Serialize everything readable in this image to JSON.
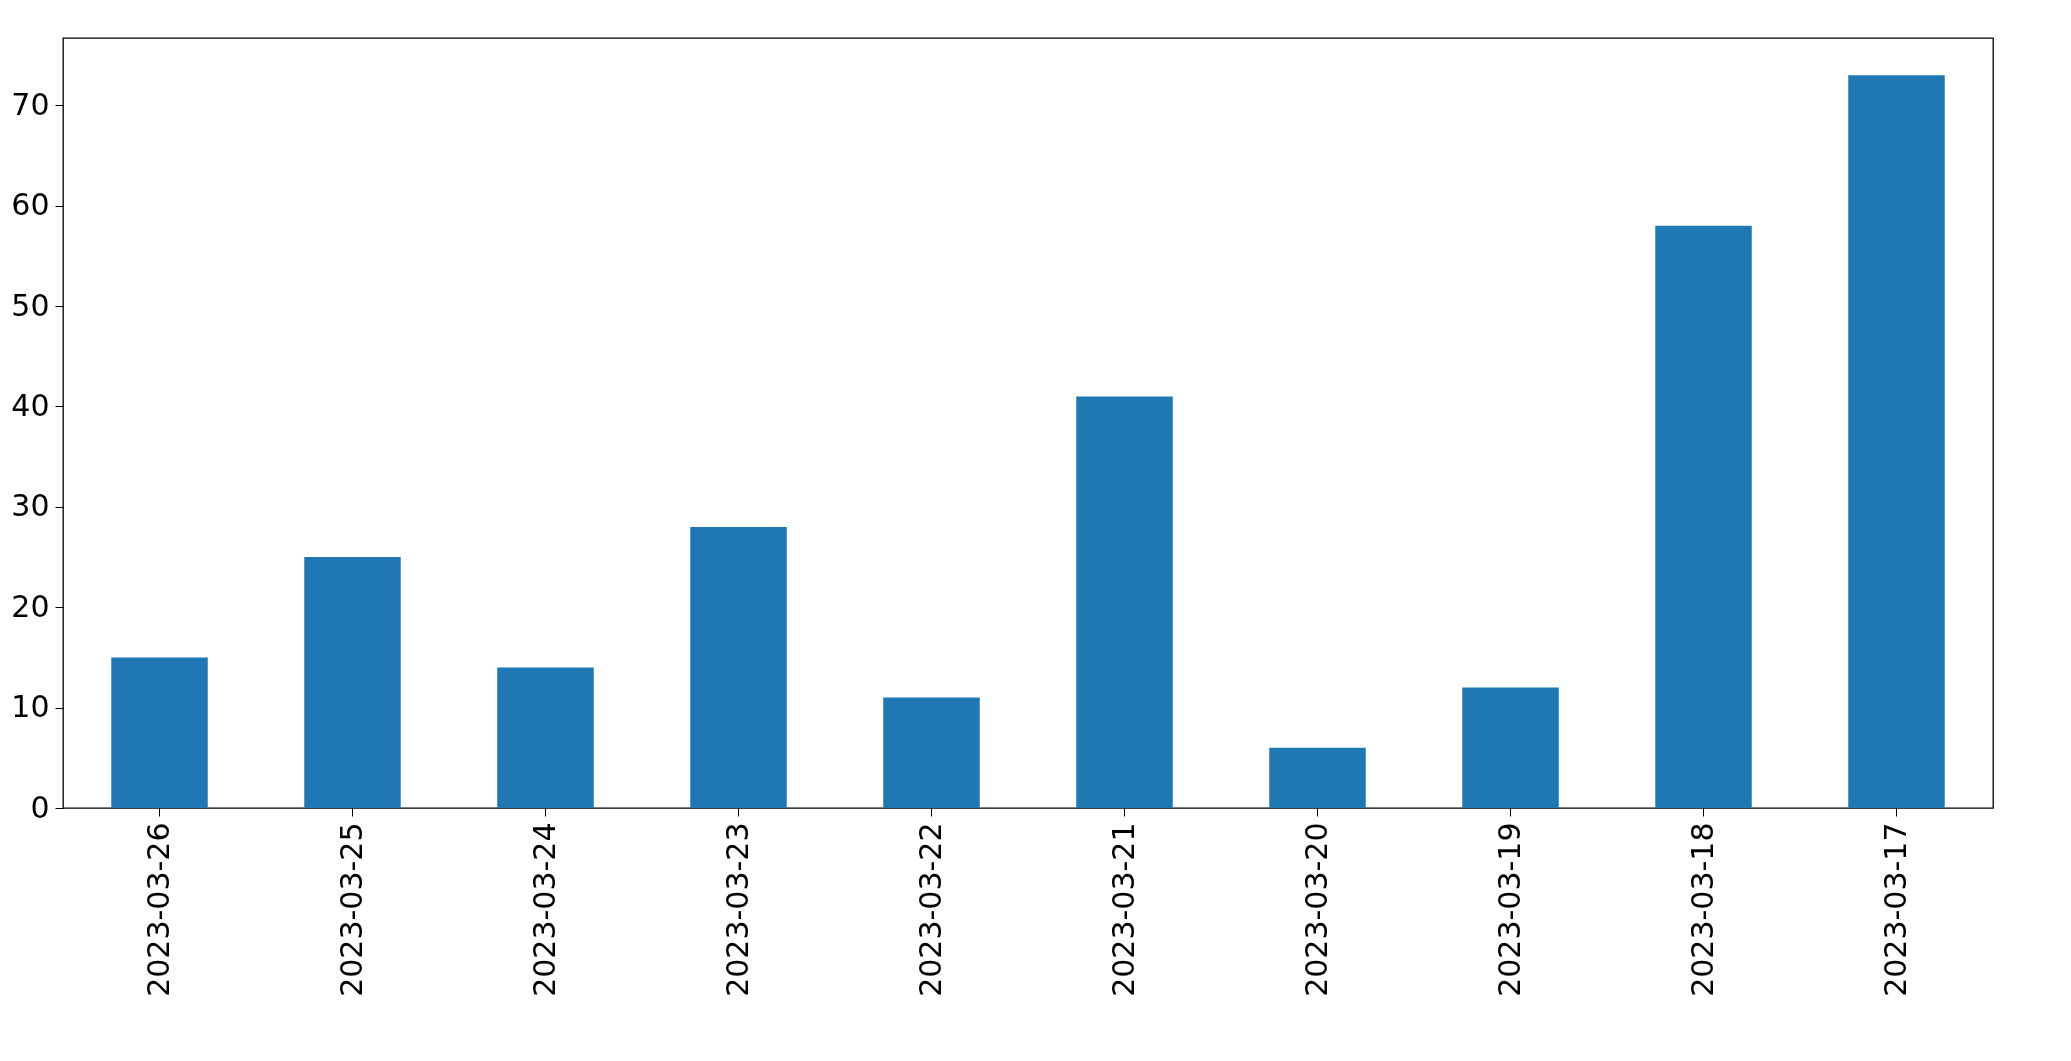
{
  "chart_data": {
    "type": "bar",
    "categories": [
      "2023-03-26",
      "2023-03-25",
      "2023-03-24",
      "2023-03-23",
      "2023-03-22",
      "2023-03-21",
      "2023-03-20",
      "2023-03-19",
      "2023-03-18",
      "2023-03-17"
    ],
    "values": [
      15,
      25,
      14,
      28,
      11,
      41,
      6,
      12,
      58,
      73
    ],
    "color": "#1f77b4",
    "ylim": [
      0,
      76.7
    ],
    "yticks": [
      0,
      10,
      20,
      30,
      40,
      50,
      60,
      70
    ],
    "grid": false
  }
}
